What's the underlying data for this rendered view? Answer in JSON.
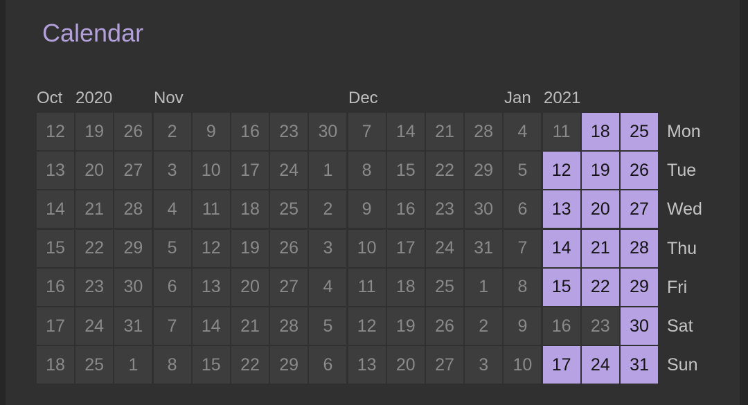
{
  "title": "Calendar",
  "months": [
    {
      "label": "Oct",
      "year": "2020"
    },
    {
      "label": "Nov",
      "year": ""
    },
    {
      "label": "Dec",
      "year": ""
    },
    {
      "label": "Jan",
      "year": "2021"
    }
  ],
  "weekdays": [
    "Mon",
    "Tue",
    "Wed",
    "Thu",
    "Fri",
    "Sat",
    "Sun"
  ],
  "accent_color": "#b7a2e4",
  "weeks": [
    {
      "days": [
        "12",
        "13",
        "14",
        "15",
        "16",
        "17",
        "18"
      ],
      "highlighted": [
        false,
        false,
        false,
        false,
        false,
        false,
        false
      ]
    },
    {
      "days": [
        "19",
        "20",
        "21",
        "22",
        "23",
        "24",
        "25"
      ],
      "highlighted": [
        false,
        false,
        false,
        false,
        false,
        false,
        false
      ]
    },
    {
      "days": [
        "26",
        "27",
        "28",
        "29",
        "30",
        "31",
        "1"
      ],
      "highlighted": [
        false,
        false,
        false,
        false,
        false,
        false,
        false
      ]
    },
    {
      "days": [
        "2",
        "3",
        "4",
        "5",
        "6",
        "7",
        "8"
      ],
      "highlighted": [
        false,
        false,
        false,
        false,
        false,
        false,
        false
      ]
    },
    {
      "days": [
        "9",
        "10",
        "11",
        "12",
        "13",
        "14",
        "15"
      ],
      "highlighted": [
        false,
        false,
        false,
        false,
        false,
        false,
        false
      ]
    },
    {
      "days": [
        "16",
        "17",
        "18",
        "19",
        "20",
        "21",
        "22"
      ],
      "highlighted": [
        false,
        false,
        false,
        false,
        false,
        false,
        false
      ]
    },
    {
      "days": [
        "23",
        "24",
        "25",
        "26",
        "27",
        "28",
        "29"
      ],
      "highlighted": [
        false,
        false,
        false,
        false,
        false,
        false,
        false
      ]
    },
    {
      "days": [
        "30",
        "1",
        "2",
        "3",
        "4",
        "5",
        "6"
      ],
      "highlighted": [
        false,
        false,
        false,
        false,
        false,
        false,
        false
      ]
    },
    {
      "days": [
        "7",
        "8",
        "9",
        "10",
        "11",
        "12",
        "13"
      ],
      "highlighted": [
        false,
        false,
        false,
        false,
        false,
        false,
        false
      ]
    },
    {
      "days": [
        "14",
        "15",
        "16",
        "17",
        "18",
        "19",
        "20"
      ],
      "highlighted": [
        false,
        false,
        false,
        false,
        false,
        false,
        false
      ]
    },
    {
      "days": [
        "21",
        "22",
        "23",
        "24",
        "25",
        "26",
        "27"
      ],
      "highlighted": [
        false,
        false,
        false,
        false,
        false,
        false,
        false
      ]
    },
    {
      "days": [
        "28",
        "29",
        "30",
        "31",
        "1",
        "2",
        "3"
      ],
      "highlighted": [
        false,
        false,
        false,
        false,
        false,
        false,
        false
      ]
    },
    {
      "days": [
        "4",
        "5",
        "6",
        "7",
        "8",
        "9",
        "10"
      ],
      "highlighted": [
        false,
        false,
        false,
        false,
        false,
        false,
        false
      ]
    },
    {
      "days": [
        "11",
        "12",
        "13",
        "14",
        "15",
        "16",
        "17"
      ],
      "highlighted": [
        false,
        true,
        true,
        true,
        true,
        false,
        true
      ]
    },
    {
      "days": [
        "18",
        "19",
        "20",
        "21",
        "22",
        "23",
        "24"
      ],
      "highlighted": [
        true,
        true,
        true,
        true,
        true,
        false,
        true
      ]
    },
    {
      "days": [
        "25",
        "26",
        "27",
        "28",
        "29",
        "30",
        "31"
      ],
      "highlighted": [
        true,
        true,
        true,
        true,
        true,
        true,
        true
      ]
    }
  ]
}
